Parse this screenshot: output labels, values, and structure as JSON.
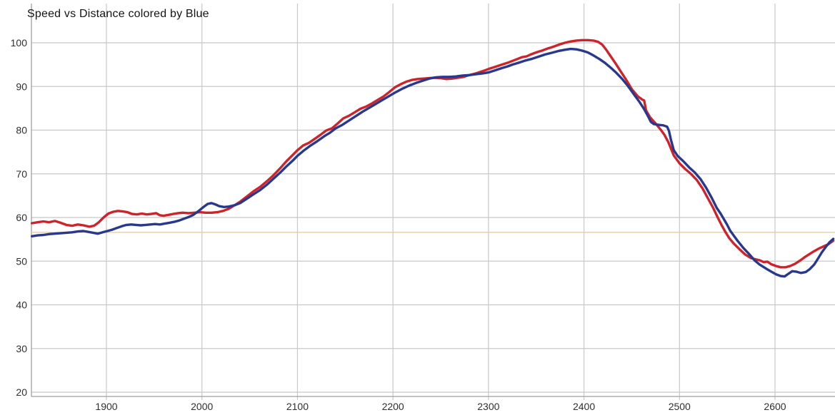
{
  "page": {
    "background": "#ffffff"
  },
  "chart_data": {
    "type": "line",
    "title": "Speed vs Distance colored by Blue",
    "xlabel": "",
    "ylabel": "",
    "grid": true,
    "legend": "none",
    "x_ticks": [
      1900,
      2000,
      2100,
      2200,
      2300,
      2400,
      2500,
      2600
    ],
    "y_ticks": [
      20,
      30,
      40,
      50,
      60,
      70,
      80,
      90,
      100
    ],
    "xlim": [
      1822,
      2661
    ],
    "ylim": [
      20,
      109
    ],
    "colors": {
      "grid": "#c8c8c8",
      "axis": "#9e9e9e",
      "tick_text": "#2f2f2f",
      "title_text": "#141414",
      "red_series": "#cd232b",
      "blue_series": "#28388c",
      "reference": "#f6c98d"
    },
    "reference_line": {
      "y": 56.6,
      "color": "#f6c98d"
    },
    "series": [
      {
        "name": "red",
        "color": "#cd232b",
        "points": [
          [
            1822,
            58.7
          ],
          [
            1828,
            58.9
          ],
          [
            1834,
            59.1
          ],
          [
            1840,
            58.9
          ],
          [
            1846,
            59.2
          ],
          [
            1852,
            58.8
          ],
          [
            1858,
            58.3
          ],
          [
            1864,
            58.1
          ],
          [
            1870,
            58.4
          ],
          [
            1876,
            58.2
          ],
          [
            1882,
            57.9
          ],
          [
            1887,
            58.1
          ],
          [
            1892,
            58.9
          ],
          [
            1897,
            60.0
          ],
          [
            1902,
            60.9
          ],
          [
            1907,
            61.3
          ],
          [
            1912,
            61.5
          ],
          [
            1917,
            61.4
          ],
          [
            1922,
            61.2
          ],
          [
            1927,
            60.8
          ],
          [
            1932,
            60.7
          ],
          [
            1937,
            60.9
          ],
          [
            1942,
            60.7
          ],
          [
            1947,
            60.8
          ],
          [
            1952,
            61.0
          ],
          [
            1956,
            60.5
          ],
          [
            1960,
            60.4
          ],
          [
            1965,
            60.6
          ],
          [
            1970,
            60.8
          ],
          [
            1975,
            61.0
          ],
          [
            1980,
            61.1
          ],
          [
            1986,
            61.0
          ],
          [
            1992,
            61.1
          ],
          [
            1998,
            61.2
          ],
          [
            2004,
            61.1
          ],
          [
            2010,
            61.1
          ],
          [
            2016,
            61.2
          ],
          [
            2022,
            61.5
          ],
          [
            2028,
            62.0
          ],
          [
            2034,
            62.8
          ],
          [
            2040,
            63.6
          ],
          [
            2047,
            64.8
          ],
          [
            2054,
            66.0
          ],
          [
            2061,
            67.0
          ],
          [
            2068,
            68.3
          ],
          [
            2075,
            69.7
          ],
          [
            2082,
            71.3
          ],
          [
            2089,
            73.0
          ],
          [
            2095,
            74.3
          ],
          [
            2100,
            75.4
          ],
          [
            2106,
            76.5
          ],
          [
            2112,
            77.1
          ],
          [
            2118,
            78.0
          ],
          [
            2124,
            78.9
          ],
          [
            2130,
            79.9
          ],
          [
            2136,
            80.4
          ],
          [
            2142,
            81.5
          ],
          [
            2148,
            82.7
          ],
          [
            2154,
            83.3
          ],
          [
            2160,
            84.1
          ],
          [
            2166,
            84.9
          ],
          [
            2172,
            85.4
          ],
          [
            2178,
            86.1
          ],
          [
            2184,
            86.9
          ],
          [
            2190,
            87.7
          ],
          [
            2196,
            88.7
          ],
          [
            2202,
            89.8
          ],
          [
            2208,
            90.5
          ],
          [
            2214,
            91.1
          ],
          [
            2220,
            91.5
          ],
          [
            2226,
            91.7
          ],
          [
            2232,
            91.8
          ],
          [
            2238,
            91.9
          ],
          [
            2244,
            92.0
          ],
          [
            2250,
            91.9
          ],
          [
            2256,
            91.7
          ],
          [
            2262,
            91.8
          ],
          [
            2268,
            92.0
          ],
          [
            2274,
            92.2
          ],
          [
            2280,
            92.6
          ],
          [
            2287,
            93.0
          ],
          [
            2294,
            93.5
          ],
          [
            2300,
            94.0
          ],
          [
            2307,
            94.5
          ],
          [
            2314,
            95.0
          ],
          [
            2321,
            95.5
          ],
          [
            2328,
            96.1
          ],
          [
            2335,
            96.7
          ],
          [
            2340,
            96.9
          ],
          [
            2344,
            97.3
          ],
          [
            2350,
            97.8
          ],
          [
            2356,
            98.2
          ],
          [
            2362,
            98.7
          ],
          [
            2368,
            99.1
          ],
          [
            2374,
            99.6
          ],
          [
            2380,
            100.0
          ],
          [
            2386,
            100.3
          ],
          [
            2392,
            100.5
          ],
          [
            2398,
            100.6
          ],
          [
            2404,
            100.6
          ],
          [
            2410,
            100.5
          ],
          [
            2415,
            100.2
          ],
          [
            2419,
            99.6
          ],
          [
            2423,
            98.5
          ],
          [
            2428,
            96.9
          ],
          [
            2433,
            95.3
          ],
          [
            2438,
            93.6
          ],
          [
            2444,
            91.6
          ],
          [
            2450,
            89.4
          ],
          [
            2456,
            87.8
          ],
          [
            2461,
            87.0
          ],
          [
            2463,
            86.8
          ],
          [
            2465,
            84.5
          ],
          [
            2469,
            83.0
          ],
          [
            2475,
            81.5
          ],
          [
            2480,
            80.2
          ],
          [
            2484,
            79.0
          ],
          [
            2488,
            77.4
          ],
          [
            2491,
            75.8
          ],
          [
            2494,
            74.2
          ],
          [
            2500,
            72.4
          ],
          [
            2506,
            71.1
          ],
          [
            2512,
            70.0
          ],
          [
            2518,
            68.6
          ],
          [
            2524,
            66.7
          ],
          [
            2530,
            64.3
          ],
          [
            2535,
            62.3
          ],
          [
            2540,
            60.0
          ],
          [
            2544,
            58.3
          ],
          [
            2548,
            56.7
          ],
          [
            2552,
            55.3
          ],
          [
            2557,
            54.0
          ],
          [
            2563,
            52.7
          ],
          [
            2569,
            51.5
          ],
          [
            2575,
            50.7
          ],
          [
            2580,
            50.4
          ],
          [
            2584,
            50.2
          ],
          [
            2588,
            49.8
          ],
          [
            2592,
            49.9
          ],
          [
            2596,
            49.3
          ],
          [
            2601,
            48.9
          ],
          [
            2606,
            48.6
          ],
          [
            2611,
            48.6
          ],
          [
            2616,
            48.9
          ],
          [
            2621,
            49.4
          ],
          [
            2626,
            50.1
          ],
          [
            2631,
            50.9
          ],
          [
            2636,
            51.6
          ],
          [
            2641,
            52.3
          ],
          [
            2646,
            52.9
          ],
          [
            2651,
            53.4
          ],
          [
            2656,
            53.9
          ],
          [
            2661,
            54.7
          ]
        ]
      },
      {
        "name": "blue",
        "color": "#28388c",
        "points": [
          [
            1822,
            55.7
          ],
          [
            1828,
            55.9
          ],
          [
            1834,
            56.0
          ],
          [
            1840,
            56.2
          ],
          [
            1846,
            56.3
          ],
          [
            1852,
            56.4
          ],
          [
            1858,
            56.5
          ],
          [
            1864,
            56.6
          ],
          [
            1870,
            56.8
          ],
          [
            1876,
            56.9
          ],
          [
            1881,
            56.7
          ],
          [
            1886,
            56.5
          ],
          [
            1891,
            56.3
          ],
          [
            1896,
            56.6
          ],
          [
            1901,
            56.9
          ],
          [
            1906,
            57.2
          ],
          [
            1911,
            57.6
          ],
          [
            1916,
            58.0
          ],
          [
            1921,
            58.3
          ],
          [
            1926,
            58.4
          ],
          [
            1931,
            58.3
          ],
          [
            1936,
            58.2
          ],
          [
            1941,
            58.3
          ],
          [
            1946,
            58.4
          ],
          [
            1951,
            58.5
          ],
          [
            1956,
            58.4
          ],
          [
            1961,
            58.6
          ],
          [
            1966,
            58.8
          ],
          [
            1971,
            59.0
          ],
          [
            1976,
            59.3
          ],
          [
            1981,
            59.7
          ],
          [
            1986,
            60.1
          ],
          [
            1991,
            60.6
          ],
          [
            1996,
            61.4
          ],
          [
            2001,
            62.3
          ],
          [
            2006,
            63.1
          ],
          [
            2010,
            63.3
          ],
          [
            2014,
            63.0
          ],
          [
            2018,
            62.6
          ],
          [
            2023,
            62.4
          ],
          [
            2028,
            62.5
          ],
          [
            2034,
            62.8
          ],
          [
            2040,
            63.3
          ],
          [
            2047,
            64.3
          ],
          [
            2054,
            65.3
          ],
          [
            2061,
            66.3
          ],
          [
            2068,
            67.5
          ],
          [
            2075,
            68.9
          ],
          [
            2082,
            70.3
          ],
          [
            2089,
            71.8
          ],
          [
            2095,
            73.0
          ],
          [
            2100,
            74.1
          ],
          [
            2107,
            75.4
          ],
          [
            2114,
            76.5
          ],
          [
            2121,
            77.5
          ],
          [
            2128,
            78.6
          ],
          [
            2134,
            79.4
          ],
          [
            2140,
            80.4
          ],
          [
            2147,
            81.2
          ],
          [
            2154,
            82.2
          ],
          [
            2161,
            83.2
          ],
          [
            2168,
            84.2
          ],
          [
            2175,
            85.1
          ],
          [
            2182,
            86.0
          ],
          [
            2189,
            86.9
          ],
          [
            2196,
            87.8
          ],
          [
            2203,
            88.7
          ],
          [
            2210,
            89.5
          ],
          [
            2217,
            90.2
          ],
          [
            2224,
            90.8
          ],
          [
            2231,
            91.3
          ],
          [
            2238,
            91.8
          ],
          [
            2245,
            92.1
          ],
          [
            2252,
            92.2
          ],
          [
            2259,
            92.2
          ],
          [
            2266,
            92.3
          ],
          [
            2273,
            92.5
          ],
          [
            2280,
            92.6
          ],
          [
            2287,
            92.8
          ],
          [
            2294,
            93.0
          ],
          [
            2300,
            93.2
          ],
          [
            2307,
            93.7
          ],
          [
            2314,
            94.2
          ],
          [
            2320,
            94.6
          ],
          [
            2325,
            95.0
          ],
          [
            2331,
            95.4
          ],
          [
            2338,
            95.9
          ],
          [
            2345,
            96.3
          ],
          [
            2352,
            96.8
          ],
          [
            2359,
            97.3
          ],
          [
            2366,
            97.7
          ],
          [
            2373,
            98.1
          ],
          [
            2380,
            98.4
          ],
          [
            2386,
            98.6
          ],
          [
            2392,
            98.5
          ],
          [
            2398,
            98.2
          ],
          [
            2404,
            97.8
          ],
          [
            2410,
            97.1
          ],
          [
            2416,
            96.3
          ],
          [
            2422,
            95.4
          ],
          [
            2428,
            94.3
          ],
          [
            2434,
            93.1
          ],
          [
            2440,
            91.7
          ],
          [
            2446,
            90.1
          ],
          [
            2452,
            88.3
          ],
          [
            2458,
            86.5
          ],
          [
            2463,
            84.8
          ],
          [
            2467,
            83.2
          ],
          [
            2470,
            81.9
          ],
          [
            2473,
            81.4
          ],
          [
            2478,
            81.2
          ],
          [
            2483,
            81.1
          ],
          [
            2487,
            80.8
          ],
          [
            2489,
            79.8
          ],
          [
            2491,
            77.8
          ],
          [
            2494,
            75.4
          ],
          [
            2498,
            74.1
          ],
          [
            2504,
            72.9
          ],
          [
            2510,
            71.5
          ],
          [
            2516,
            70.3
          ],
          [
            2522,
            68.8
          ],
          [
            2528,
            66.8
          ],
          [
            2534,
            64.4
          ],
          [
            2539,
            62.2
          ],
          [
            2543,
            60.9
          ],
          [
            2546,
            59.8
          ],
          [
            2550,
            58.3
          ],
          [
            2553,
            57.0
          ],
          [
            2557,
            55.8
          ],
          [
            2561,
            54.6
          ],
          [
            2567,
            53.0
          ],
          [
            2573,
            51.6
          ],
          [
            2579,
            50.1
          ],
          [
            2584,
            49.2
          ],
          [
            2590,
            48.4
          ],
          [
            2596,
            47.6
          ],
          [
            2601,
            47.0
          ],
          [
            2606,
            46.6
          ],
          [
            2610,
            46.5
          ],
          [
            2614,
            47.1
          ],
          [
            2618,
            47.7
          ],
          [
            2622,
            47.6
          ],
          [
            2627,
            47.3
          ],
          [
            2632,
            47.5
          ],
          [
            2636,
            48.1
          ],
          [
            2641,
            49.2
          ],
          [
            2645,
            50.6
          ],
          [
            2649,
            52.0
          ],
          [
            2653,
            53.2
          ],
          [
            2657,
            54.3
          ],
          [
            2661,
            55.1
          ]
        ]
      }
    ]
  }
}
